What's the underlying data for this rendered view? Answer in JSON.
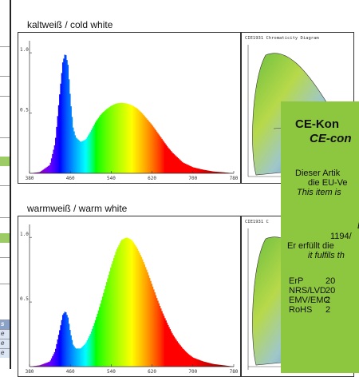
{
  "sections": {
    "cold": {
      "title": "kaltweiß / cold white"
    },
    "warm": {
      "title": "warmweiß / warm white"
    }
  },
  "cie": {
    "title": "CIE1931 Chromaticity Diagram",
    "title_short": "CIE1931 C"
  },
  "ce_box": {
    "title_de": "CE-Kon",
    "title_en": "CE-con",
    "line1": "Dieser Artik",
    "line2": "die EU-Ve",
    "line3": "This item is",
    "line4": "E",
    "line5": "1194/",
    "line6": "Er erfüllt die",
    "line7": "it fulfils th",
    "directives": [
      {
        "name": "ErP",
        "value": "20"
      },
      {
        "name": "NRS/LVD",
        "value": "20"
      },
      {
        "name": "EMV/EMC",
        "value": "2"
      },
      {
        "name": "RoHS",
        "value": "2"
      }
    ]
  },
  "rail": {
    "item1": "s",
    "item2": "e",
    "item3": "e",
    "item4": "e"
  },
  "chart_data": [
    {
      "type": "area",
      "title": "kaltweiß / cold white",
      "x_ticks": [
        "380",
        "460",
        "540",
        "620",
        "700",
        "780"
      ],
      "y_ticks": [
        "1.0",
        "0.5"
      ],
      "xlim": [
        380,
        780
      ],
      "ylim": [
        0,
        1.1
      ],
      "x": [
        380,
        400,
        420,
        430,
        440,
        445,
        450,
        455,
        460,
        465,
        470,
        480,
        490,
        500,
        510,
        520,
        530,
        540,
        550,
        560,
        570,
        580,
        590,
        600,
        610,
        620,
        630,
        640,
        650,
        660,
        670,
        680,
        690,
        700,
        720,
        740,
        760,
        780
      ],
      "y": [
        0.0,
        0.01,
        0.07,
        0.25,
        0.7,
        0.92,
        1.0,
        0.9,
        0.6,
        0.38,
        0.3,
        0.26,
        0.28,
        0.35,
        0.43,
        0.49,
        0.53,
        0.56,
        0.58,
        0.585,
        0.58,
        0.565,
        0.54,
        0.5,
        0.45,
        0.4,
        0.34,
        0.28,
        0.22,
        0.17,
        0.13,
        0.09,
        0.07,
        0.05,
        0.03,
        0.015,
        0.008,
        0.0
      ]
    },
    {
      "type": "area",
      "title": "warmweiß / warm white",
      "x_ticks": [
        "380",
        "460",
        "540",
        "620",
        "700",
        "780"
      ],
      "y_ticks": [
        "1.0",
        "0.5"
      ],
      "xlim": [
        380,
        780
      ],
      "ylim": [
        0,
        1.1
      ],
      "x": [
        380,
        400,
        420,
        430,
        440,
        445,
        450,
        455,
        460,
        465,
        470,
        480,
        490,
        500,
        510,
        520,
        530,
        540,
        550,
        560,
        570,
        580,
        590,
        600,
        610,
        620,
        630,
        640,
        650,
        660,
        670,
        680,
        690,
        700,
        720,
        740,
        760,
        780
      ],
      "y": [
        0.0,
        0.01,
        0.04,
        0.12,
        0.3,
        0.4,
        0.43,
        0.38,
        0.26,
        0.17,
        0.14,
        0.14,
        0.18,
        0.26,
        0.37,
        0.5,
        0.64,
        0.78,
        0.9,
        0.98,
        1.0,
        0.98,
        0.92,
        0.84,
        0.74,
        0.63,
        0.52,
        0.42,
        0.33,
        0.25,
        0.19,
        0.14,
        0.1,
        0.07,
        0.04,
        0.02,
        0.01,
        0.0
      ]
    }
  ]
}
